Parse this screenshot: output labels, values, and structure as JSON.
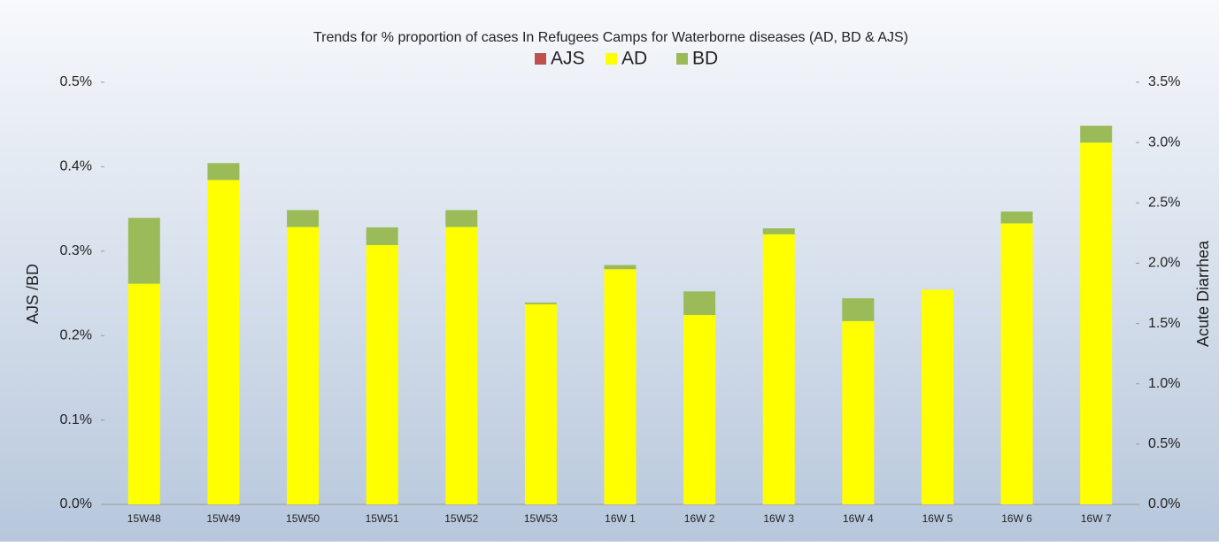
{
  "chart_data": {
    "type": "bar",
    "title": "Trends for % proportion of cases In Refugees Camps for Waterborne diseases (AD, BD & AJS)",
    "ylabel": "AJS /BD",
    "y2label": "Acute Diarrhea",
    "categories": [
      "15W48",
      "15W49",
      "15W50",
      "15W51",
      "15W52",
      "15W53",
      "16W 1",
      "16W 2",
      "16W 3",
      "16W 4",
      "16W 5",
      "16W 6",
      "16W 7"
    ],
    "series": [
      {
        "name": "AJS",
        "color": "#c0504d",
        "axis": "y",
        "values": [
          0,
          0,
          0,
          0,
          0,
          0,
          0,
          0,
          0,
          0,
          0,
          0,
          0
        ]
      },
      {
        "name": "AD",
        "color": "#ffff00",
        "axis": "y2",
        "values": [
          1.83,
          2.69,
          2.3,
          2.15,
          2.3,
          1.66,
          1.95,
          1.57,
          2.24,
          1.52,
          1.78,
          2.33,
          3.0
        ]
      },
      {
        "name": "BD",
        "color": "#9bbb59",
        "axis": "y",
        "values": [
          0.078,
          0.02,
          0.02,
          0.021,
          0.02,
          0.002,
          0.005,
          0.028,
          0.007,
          0.027,
          0,
          0.014,
          0.02
        ]
      }
    ],
    "ylim": [
      0,
      0.5
    ],
    "yticks": [
      {
        "value": 0,
        "label": "0.0%"
      },
      {
        "value": 0.1,
        "label": "0.1%"
      },
      {
        "value": 0.2,
        "label": "0.2%"
      },
      {
        "value": 0.3,
        "label": "0.3%"
      },
      {
        "value": 0.4,
        "label": "0.4%"
      },
      {
        "value": 0.5,
        "label": "0.5%"
      }
    ],
    "y2lim": [
      0,
      3.5
    ],
    "y2ticks": [
      {
        "value": 0,
        "label": "0.0%"
      },
      {
        "value": 0.5,
        "label": "0.5%"
      },
      {
        "value": 1,
        "label": "1.0%"
      },
      {
        "value": 1.5,
        "label": "1.5%"
      },
      {
        "value": 2,
        "label": "2.0%"
      },
      {
        "value": 2.5,
        "label": "2.5%"
      },
      {
        "value": 3,
        "label": "3.0%"
      },
      {
        "value": 3.5,
        "label": "3.5%"
      }
    ]
  }
}
